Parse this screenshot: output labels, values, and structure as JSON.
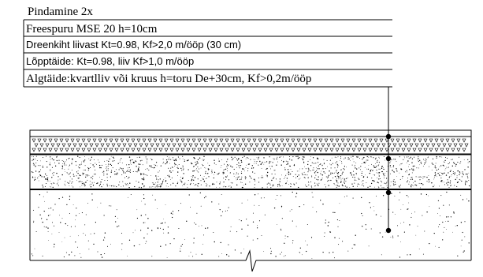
{
  "labels": [
    {
      "text": "Pindamine 2x",
      "font": "serif"
    },
    {
      "text": "Freespuru MSE 20 h=10cm",
      "font": "serif"
    },
    {
      "text": "Dreenkiht liivast Kt=0.98, Kf>2,0 m/ööp (30 cm)",
      "font": "sans"
    },
    {
      "text": "Lõpptäide: Kt=0.98, liiv Kf>1,0 m/ööp",
      "font": "sans"
    },
    {
      "text": "Algtäide:kvartlliv või kruus h=toru De+30cm, Kf>0,2m/ööp",
      "font": "serif"
    }
  ],
  "layers": [
    {
      "name": "surface-layer",
      "pattern": "none"
    },
    {
      "name": "asphalt-layer",
      "pattern": "triangles"
    },
    {
      "name": "drainage-layer",
      "pattern": "dense-dots"
    },
    {
      "name": "fill-layer",
      "pattern": "sparse-dots"
    }
  ]
}
